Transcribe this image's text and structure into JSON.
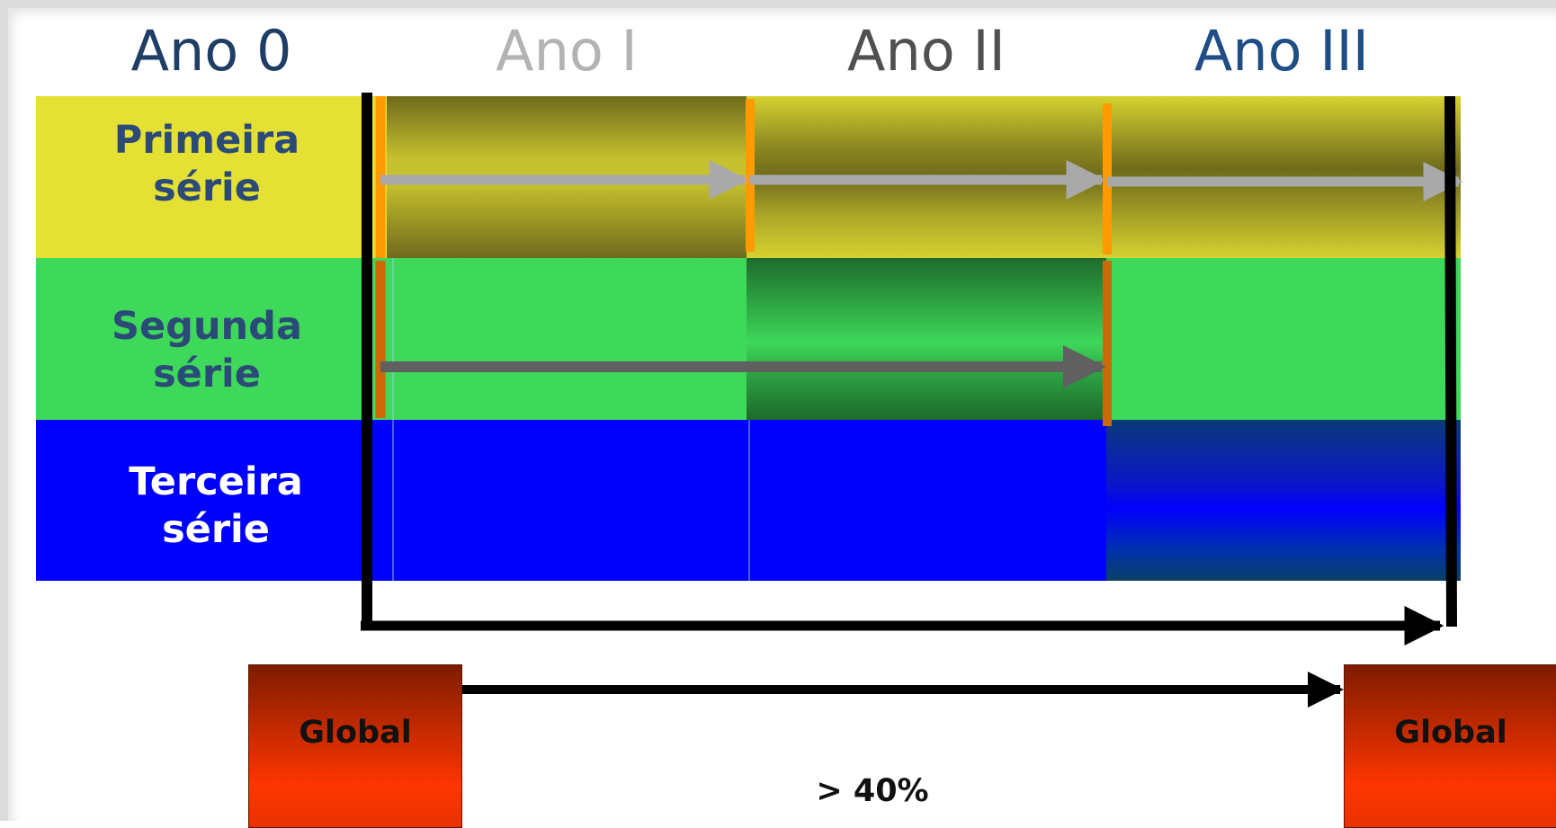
{
  "columns": [
    "Ano 0",
    "Ano I",
    "Ano II",
    "Ano III"
  ],
  "rows": [
    {
      "line1": "Primeira",
      "line2": "série"
    },
    {
      "line1": "Segunda",
      "line2": "série"
    },
    {
      "line1": "Terceira",
      "line2": "série"
    }
  ],
  "global_left": "Global",
  "global_right": "Global",
  "threshold": "> 40%",
  "colors": {
    "row1": "#e4e034",
    "row2": "#3ed85a",
    "row3": "#0000fd",
    "global_box": "#ff3500",
    "marker": "#ff9a00",
    "arrow_row1": "#a9a9a9",
    "arrow_row2": "#606060"
  }
}
